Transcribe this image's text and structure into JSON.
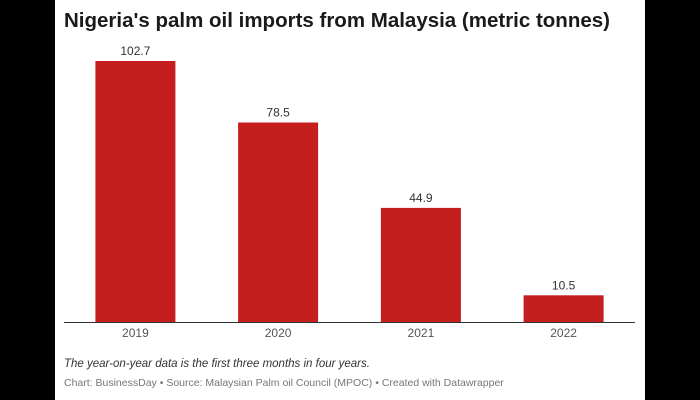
{
  "chart_data": {
    "type": "bar",
    "title": "Nigeria's palm oil imports from Malaysia (metric tonnes)",
    "categories": [
      "2019",
      "2020",
      "2021",
      "2022"
    ],
    "values": [
      102.7,
      78.5,
      44.9,
      10.5
    ],
    "data_labels": [
      "102.7",
      "78.5",
      "44.9",
      "10.5"
    ],
    "xlabel": "",
    "ylabel": "",
    "ylim": [
      0,
      102.7
    ],
    "grid": false,
    "bar_color": "#c41e1e"
  },
  "notes": {
    "text": "The year-on-year data is the first three months in four years."
  },
  "credits": {
    "chart": "Chart: BusinessDay",
    "separator": " • ",
    "source": "Source: Malaysian Palm oil Council (MPOC)",
    "tool": "Created with Datawrapper"
  }
}
